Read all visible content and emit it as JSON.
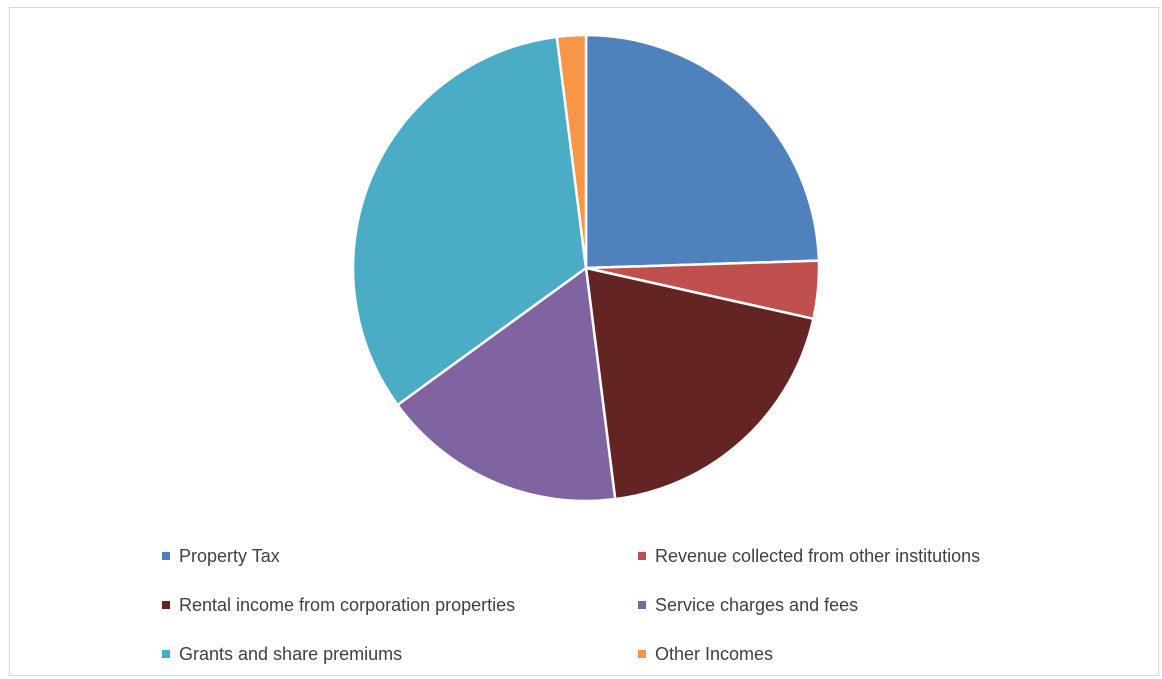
{
  "chart_data": {
    "type": "pie",
    "title": "",
    "start_angle_deg": 0,
    "direction": "clockwise",
    "series": [
      {
        "categories": [
          "Property Tax",
          "Revenue collected from other institutions",
          "Rental income from corporation properties",
          "Service charges and fees",
          "Grants and share premiums",
          "Other Incomes"
        ],
        "values": [
          24.5,
          4.0,
          19.5,
          17.0,
          33.0,
          2.0
        ],
        "colors": [
          "#4f81bd",
          "#c0504d",
          "#632423",
          "#8064a2",
          "#4bacc6",
          "#f79646"
        ]
      }
    ],
    "legend": {
      "position": "bottom",
      "columns": 2
    }
  }
}
